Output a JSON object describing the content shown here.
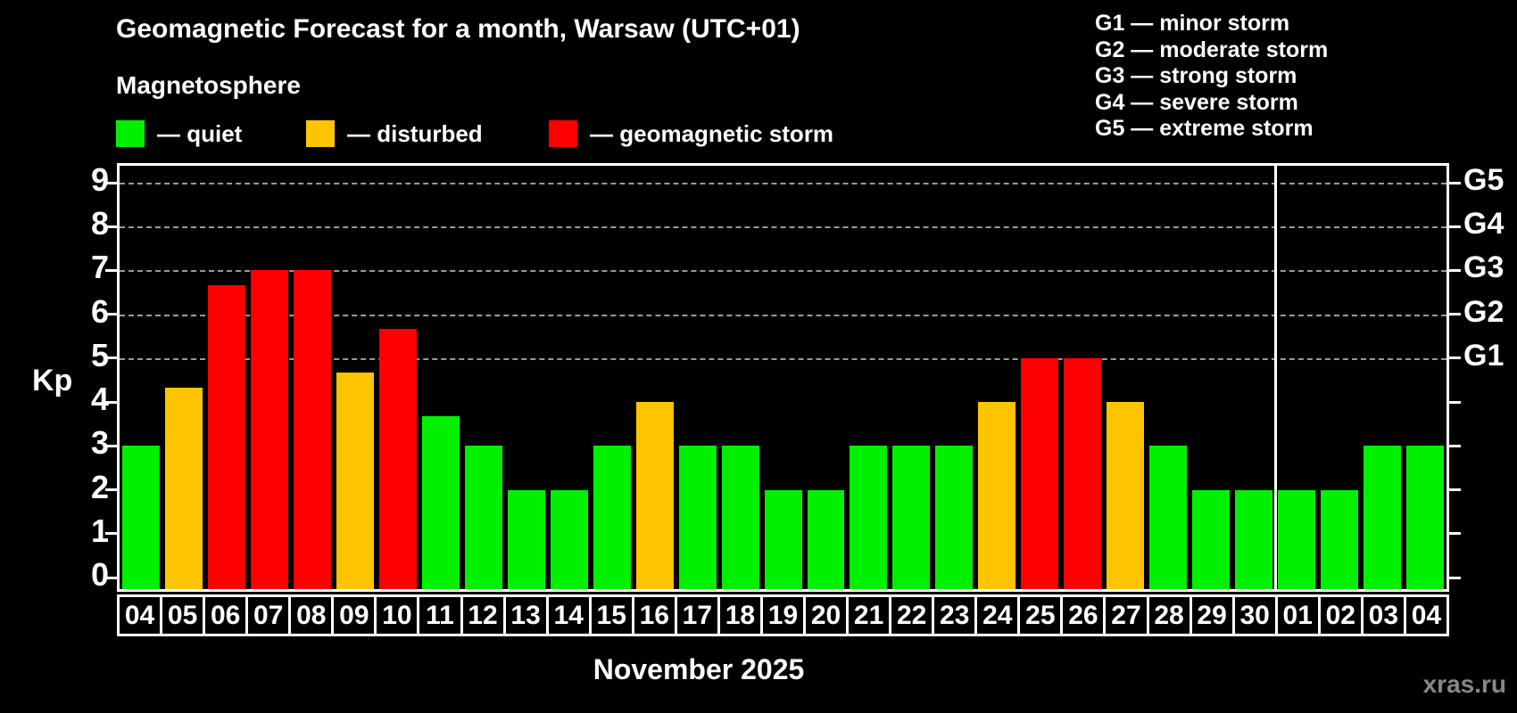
{
  "title": "Geomagnetic Forecast for a month, Warsaw (UTC+01)",
  "subtitle": "Magnetosphere",
  "legend": {
    "items": [
      {
        "key": "quiet",
        "label": "— quiet",
        "color": "#00f000",
        "x": 130
      },
      {
        "key": "disturbed",
        "label": "— disturbed",
        "color": "#ffc400",
        "x": 343
      },
      {
        "key": "storm",
        "label": "— geomagnetic storm",
        "color": "#ff0000",
        "x": 615
      }
    ]
  },
  "storm_scale_legend": {
    "lines": [
      "G1 — minor storm",
      "G2 — moderate storm",
      "G3 — strong storm",
      "G4 — severe storm",
      "G5 — extreme storm"
    ]
  },
  "chart_data": {
    "type": "bar",
    "title": "Geomagnetic Forecast for a month, Warsaw (UTC+01)",
    "ylabel": "Kp",
    "xlabel": "November 2025",
    "ylim": [
      0,
      9
    ],
    "yticks": [
      0,
      1,
      2,
      3,
      4,
      5,
      6,
      7,
      8,
      9
    ],
    "gridlines_at": [
      5,
      6,
      7,
      8,
      9
    ],
    "grid": "dashed, levels 5-9 only",
    "right_axis_labels": [
      {
        "kp": 5,
        "label": "G1"
      },
      {
        "kp": 6,
        "label": "G2"
      },
      {
        "kp": 7,
        "label": "G3"
      },
      {
        "kp": 8,
        "label": "G4"
      },
      {
        "kp": 9,
        "label": "G5"
      }
    ],
    "month_separator_after_index": 26,
    "categories": [
      "04",
      "05",
      "06",
      "07",
      "08",
      "09",
      "10",
      "11",
      "12",
      "13",
      "14",
      "15",
      "16",
      "17",
      "18",
      "19",
      "20",
      "21",
      "22",
      "23",
      "24",
      "25",
      "26",
      "27",
      "28",
      "29",
      "30",
      "01",
      "02",
      "03",
      "04"
    ],
    "values": [
      3,
      4.33,
      6.67,
      7,
      7,
      4.67,
      5.67,
      3.67,
      3,
      2,
      2,
      3,
      4,
      3,
      3,
      2,
      2,
      3,
      3,
      3,
      4,
      5,
      5,
      4,
      3,
      2,
      2,
      2,
      2,
      3,
      3
    ],
    "statuses": [
      "quiet",
      "disturbed",
      "storm",
      "storm",
      "storm",
      "disturbed",
      "storm",
      "quiet",
      "quiet",
      "quiet",
      "quiet",
      "quiet",
      "disturbed",
      "quiet",
      "quiet",
      "quiet",
      "quiet",
      "quiet",
      "quiet",
      "quiet",
      "disturbed",
      "storm",
      "storm",
      "disturbed",
      "quiet",
      "quiet",
      "quiet",
      "quiet",
      "quiet",
      "quiet",
      "quiet"
    ]
  },
  "footer": {
    "caption": "November 2025",
    "watermark": "xras.ru"
  },
  "colors": {
    "background": "#000000",
    "axis": "#ffffff",
    "gridline": "#9a9a9a",
    "quiet": "#00f000",
    "disturbed": "#ffc400",
    "storm": "#ff0000",
    "watermark": "#878787"
  }
}
